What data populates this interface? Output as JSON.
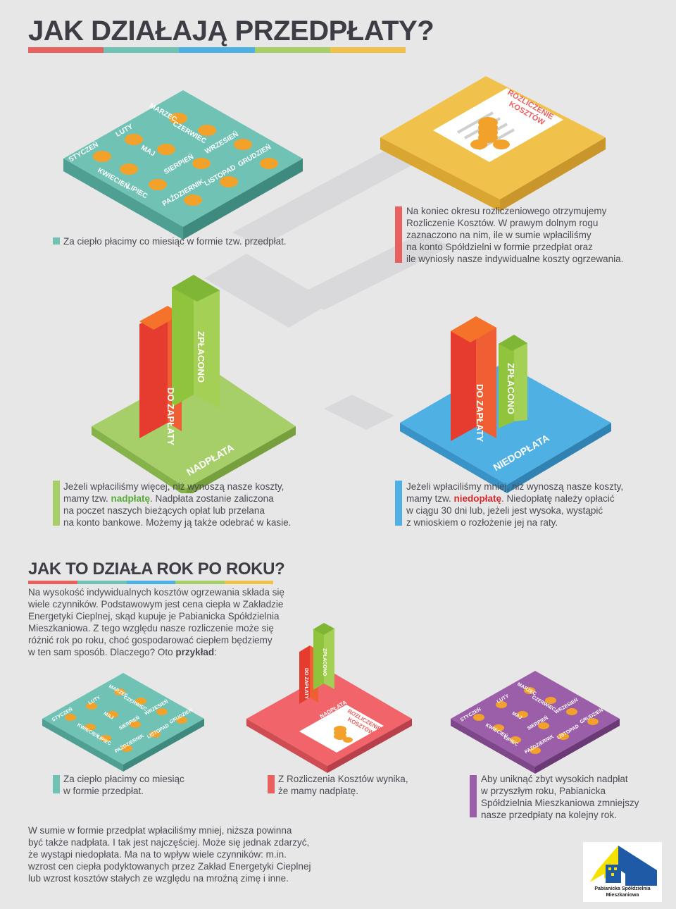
{
  "header": {
    "title": "JAK DZIAŁAJĄ PRZEDPŁATY?"
  },
  "months": {
    "styczen": "STYCZEŃ",
    "luty": "LUTY",
    "marzec": "MARZEC",
    "kwiecien": "KWIECIEŃ",
    "maj": "MAJ",
    "czerwiec": "CZERWIEC",
    "lipiec": "LIPIEC",
    "sierpien": "SIERPIEŃ",
    "wrzesien": "WRZESIEŃ",
    "pazdziernik": "PAŹDZIERNIK",
    "listopad": "LISTOPAD",
    "grudzien": "GRUDZIEŃ"
  },
  "settlement_doc": {
    "line1": "ROZLICZENIE",
    "line2": "KOSZTÓW"
  },
  "step1": {
    "text": "Za ciepło płacimy co miesiąc w formie tzw. przedpłat."
  },
  "step2": {
    "line1": "Na koniec okresu rozliczeniowego otrzymujemy",
    "line2": "Rozliczenie Kosztów. W prawym dolnym rogu",
    "line3": "zaznaczono na nim, ile w sumie wpłaciliśmy",
    "line4": "na konto Spółdzielni w formie przedpłat oraz",
    "line5": "ile wyniosły nasze indywidualne koszty ogrzewania."
  },
  "bars": {
    "do_zaplaty": "DO ZAPŁATY",
    "zaplacono": "ZPŁACONO",
    "nadplata": "NADPŁATA",
    "niedoplata": "NIEDOPŁATA"
  },
  "overpay": {
    "line1": "Jeżeli wpłaciliśmy więcej, niż wynoszą nasze koszty,",
    "line2_pre": "mamy tzw. ",
    "line2_hl": "nadpłatę",
    "line2_post": ". Nadpłata zostanie zaliczona",
    "line3": "na poczet naszych bieżących opłat lub przelana",
    "line4": "na konto bankowe. Możemy ją także odebrać w kasie."
  },
  "underpay": {
    "line1": "Jeżeli wpłaciliśmy mniej, niż wynoszą nasze koszty,",
    "line2_pre": "mamy tzw. ",
    "line2_hl": "niedopłatę",
    "line2_post": ". Niedopłatę należy opłacić",
    "line3": "w ciągu 30 dni lub, jeżeli jest wysoka, wystąpić",
    "line4": "z wnioskiem o rozłożenie jej na raty."
  },
  "section2": {
    "title": "JAK TO DZIAŁA ROK PO ROKU?",
    "line1": "Na wysokość indywidualnych kosztów ogrzewania składa się",
    "line2": "wiele czynników. Podstawowym jest cena ciepła w Zakładzie",
    "line3": "Energetyki Cieplnej, skąd kupuje je Pabianicka Spółdzielnia",
    "line4": "Mieszkaniowa. Z tego względu nasze rozliczenie może się",
    "line5": "różnić rok po roku, choć gospodarować ciepłem będziemy",
    "line6_pre": "w ten sam sposób. Dlaczego? Oto ",
    "line6_bold": "przykład",
    "line6_post": ":"
  },
  "caption1": {
    "line1": "Za ciepło płacimy co miesiąc",
    "line2": "w formie przedpłat."
  },
  "caption2": {
    "line1": "Z Rozliczenia Kosztów wynika,",
    "line2": "że mamy nadpłatę."
  },
  "caption3": {
    "line1": "Aby uniknąć zbyt wysokich nadpłat",
    "line2": "w przyszłym roku, Pabianicka",
    "line3": "Spółdzielnia Mieszkaniowa zmniejszy",
    "line4": "nasze przedpłaty na kolejny rok."
  },
  "summary": {
    "line1": "W sumie w formie przedpłat wpłaciliśmy mniej, niższa powinna",
    "line2": "być także nadpłata. I tak jest najczęściej. Może się jednak zdarzyć,",
    "line3": "że wystąpi niedopłata. Ma na to wpływ wiele czynników: m.in.",
    "line4": "wzrost cen ciepła podyktowanych przez Zakład Energetyki Cieplnej",
    "line5": "lub wzrost kosztów stałych ze względu na mroźną zimę i inne."
  },
  "logo": {
    "line1": "Pabianicka Spółdzielnia",
    "line2": "Mieszkaniowa"
  },
  "colors": {
    "red": "#e8615e",
    "teal": "#6fc2b4",
    "blue": "#4fb0e4",
    "green": "#a6cf6a",
    "yellow": "#f1c24b",
    "purple": "#9b5ea8",
    "coin": "#f2a22a"
  },
  "icons": [
    "coin-icon",
    "document-icon",
    "logo-icon"
  ]
}
